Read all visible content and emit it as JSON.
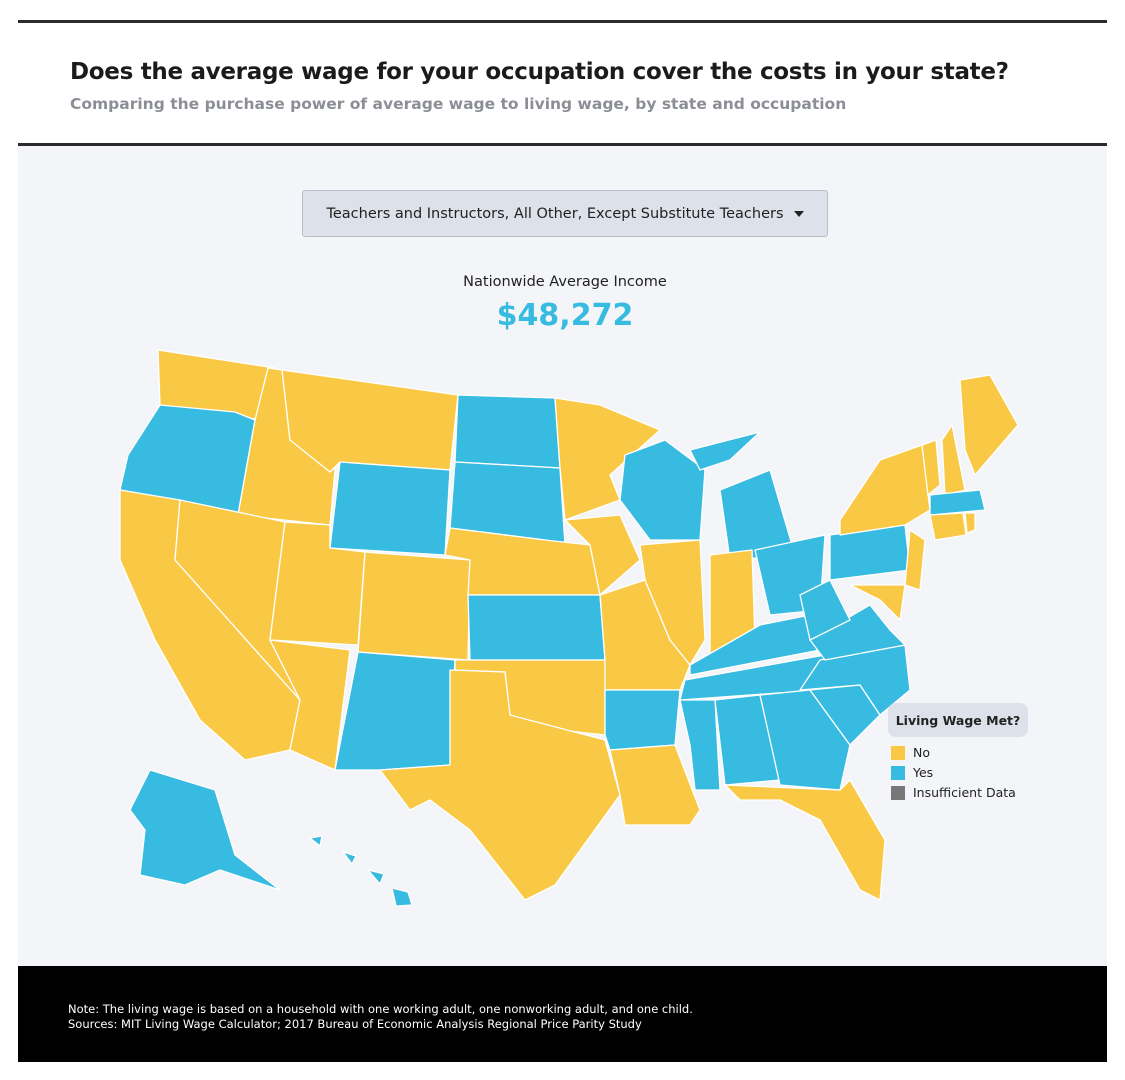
{
  "header": {
    "title": "Does the average wage for your occupation cover the costs in your state?",
    "subtitle": "Comparing the purchase power of average wage to living wage, by state and occupation"
  },
  "dropdown": {
    "label": "Teachers and Instructors, All Other, Except Substitute Teachers"
  },
  "stat": {
    "label": "Nationwide Average Income",
    "value": "$48,272"
  },
  "map": {
    "regions": [
      "No",
      "Yes",
      "No",
      "No",
      "No",
      "No",
      "Yes",
      "No",
      "No",
      "No",
      "Yes",
      "Yes",
      "Yes",
      "No",
      "Yes",
      "No",
      "No",
      "No",
      "No",
      "No",
      "Yes",
      "No",
      "Yes",
      "No",
      "Yes",
      "No",
      "Yes",
      "Yes",
      "Yes",
      "Yes",
      "Yes",
      "Yes",
      "No",
      "Yes",
      "Yes",
      "Yes",
      "Yes",
      "Yes",
      "No",
      "No",
      "No",
      "No",
      "No",
      "No",
      "Yes",
      "No",
      "No",
      "Yes",
      "Yes",
      "No"
    ]
  },
  "legend": {
    "title": "Living Wage Met?",
    "items": [
      {
        "label": "No",
        "color": "#f9c945"
      },
      {
        "label": "Yes",
        "color": "#37bbe0"
      },
      {
        "label": "Insufficient Data",
        "color": "#777777"
      }
    ]
  },
  "footer": {
    "note": "Note: The living wage is based on a household with one working adult, one nonworking adult, and one child.",
    "sources": "Sources: MIT Living Wage Calculator; 2017 Bureau of Economic Analysis Regional Price Parity Study"
  }
}
